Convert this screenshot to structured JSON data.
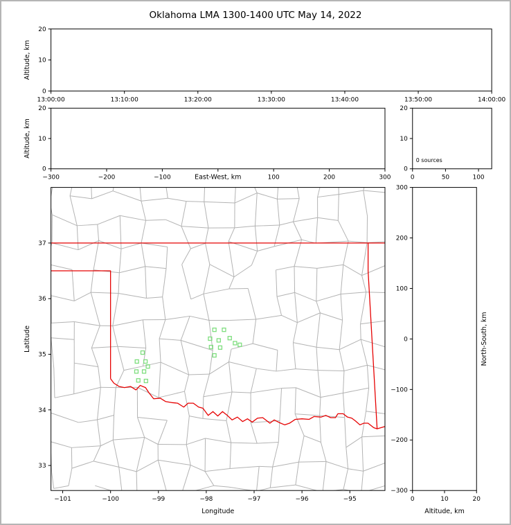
{
  "title": "Oklahoma LMA 1300-1400 UTC May 14, 2022",
  "colors": {
    "frame": "#000000",
    "county_lines": "#b3b3b3",
    "state_border": "#e60000",
    "station": "#7ede7e",
    "figure_border": "#b5b5b5",
    "background": "#ffffff"
  },
  "chart_data": [
    {
      "id": "time_height",
      "type": "scatter",
      "title": "",
      "xlabel": "",
      "ylabel": "Altitude, km",
      "xticks": [
        "13:00:00",
        "13:10:00",
        "13:20:00",
        "13:30:00",
        "13:40:00",
        "13:50:00",
        "14:00:00"
      ],
      "yticks": [
        0,
        10,
        20
      ],
      "ylim": [
        0,
        20
      ],
      "points": []
    },
    {
      "id": "ew_height",
      "type": "scatter",
      "xlabel": "East-West, km",
      "ylabel": "Altitude, km",
      "xticks": [
        -300,
        -200,
        -100,
        0,
        100,
        200,
        300
      ],
      "xlim": [
        -300,
        300
      ],
      "yticks": [
        0,
        10,
        20
      ],
      "ylim": [
        0,
        20
      ],
      "xlabel_replaces_zero_tick": true,
      "points": []
    },
    {
      "id": "alt_histogram",
      "type": "line",
      "annotation": "0 sources",
      "xticks": [
        0,
        50,
        100
      ],
      "xlim": [
        0,
        120
      ],
      "yticks": [
        0,
        10,
        20
      ],
      "ylim": [
        0,
        20
      ],
      "points": []
    },
    {
      "id": "plan_view",
      "type": "map",
      "xlabel": "Longitude",
      "ylabel": "Latitude",
      "xticks": [
        -101,
        -100,
        -99,
        -98,
        -97,
        -96,
        -95
      ],
      "xlim": [
        -101.245,
        -94.266
      ],
      "yticks": [
        33,
        34,
        35,
        36,
        37
      ],
      "ylim": [
        32.55,
        38.0
      ],
      "stations": [
        [
          -99.33,
          35.03
        ],
        [
          -99.45,
          34.87
        ],
        [
          -99.27,
          34.87
        ],
        [
          -99.22,
          34.78
        ],
        [
          -99.46,
          34.69
        ],
        [
          -99.3,
          34.69
        ],
        [
          -99.42,
          34.53
        ],
        [
          -99.26,
          34.52
        ],
        [
          -97.83,
          35.44
        ],
        [
          -97.63,
          35.44
        ],
        [
          -97.92,
          35.28
        ],
        [
          -97.74,
          35.25
        ],
        [
          -97.51,
          35.29
        ],
        [
          -97.9,
          35.13
        ],
        [
          -97.71,
          35.12
        ],
        [
          -97.83,
          34.98
        ],
        [
          -97.4,
          35.2
        ],
        [
          -97.3,
          35.17
        ]
      ],
      "state_border": [
        [
          [
            -101.245,
            37.0
          ],
          [
            -94.266,
            37.0
          ]
        ],
        [
          [
            -101.245,
            36.5
          ],
          [
            -100.0,
            36.5
          ],
          [
            -100.0,
            34.56
          ]
        ],
        [
          [
            -94.618,
            37.0
          ],
          [
            -94.618,
            36.5
          ],
          [
            -94.43,
            33.66
          ]
        ],
        [
          [
            -100.0,
            34.56
          ],
          [
            -99.93,
            34.48
          ],
          [
            -99.82,
            34.42
          ],
          [
            -99.71,
            34.4
          ],
          [
            -99.58,
            34.42
          ],
          [
            -99.47,
            34.36
          ],
          [
            -99.38,
            34.44
          ],
          [
            -99.27,
            34.4
          ],
          [
            -99.2,
            34.31
          ],
          [
            -99.1,
            34.2
          ],
          [
            -98.96,
            34.21
          ],
          [
            -98.85,
            34.15
          ],
          [
            -98.72,
            34.13
          ],
          [
            -98.6,
            34.12
          ],
          [
            -98.47,
            34.05
          ],
          [
            -98.38,
            34.12
          ],
          [
            -98.27,
            34.12
          ],
          [
            -98.16,
            34.05
          ],
          [
            -98.07,
            34.03
          ],
          [
            -97.96,
            33.9
          ],
          [
            -97.86,
            33.97
          ],
          [
            -97.76,
            33.89
          ],
          [
            -97.66,
            33.97
          ],
          [
            -97.56,
            33.9
          ],
          [
            -97.46,
            33.82
          ],
          [
            -97.35,
            33.87
          ],
          [
            -97.24,
            33.79
          ],
          [
            -97.14,
            33.84
          ],
          [
            -97.04,
            33.78
          ],
          [
            -96.93,
            33.85
          ],
          [
            -96.82,
            33.86
          ],
          [
            -96.67,
            33.76
          ],
          [
            -96.58,
            33.82
          ],
          [
            -96.47,
            33.77
          ],
          [
            -96.36,
            33.73
          ],
          [
            -96.26,
            33.76
          ],
          [
            -96.14,
            33.83
          ],
          [
            -96.0,
            33.84
          ],
          [
            -95.85,
            33.83
          ],
          [
            -95.75,
            33.88
          ],
          [
            -95.6,
            33.87
          ],
          [
            -95.5,
            33.9
          ],
          [
            -95.4,
            33.86
          ],
          [
            -95.3,
            33.86
          ],
          [
            -95.25,
            33.93
          ],
          [
            -95.14,
            33.93
          ],
          [
            -95.05,
            33.87
          ],
          [
            -94.96,
            33.85
          ],
          [
            -94.88,
            33.8
          ],
          [
            -94.79,
            33.73
          ],
          [
            -94.71,
            33.76
          ],
          [
            -94.62,
            33.76
          ],
          [
            -94.5,
            33.68
          ],
          [
            -94.43,
            33.66
          ],
          [
            -94.27,
            33.7
          ]
        ]
      ],
      "county_grid": {
        "lon_step": 0.47,
        "lat_step": 0.44,
        "jitter": 0.12
      }
    },
    {
      "id": "ns_height",
      "type": "scatter",
      "xlabel": "Altitude, km",
      "ylabel": "North-South, km",
      "xticks": [
        0,
        10,
        20
      ],
      "xlim": [
        0,
        20
      ],
      "yticks": [
        -300,
        -200,
        -100,
        0,
        100,
        200,
        300
      ],
      "ylim": [
        -300,
        300
      ],
      "points": []
    }
  ]
}
